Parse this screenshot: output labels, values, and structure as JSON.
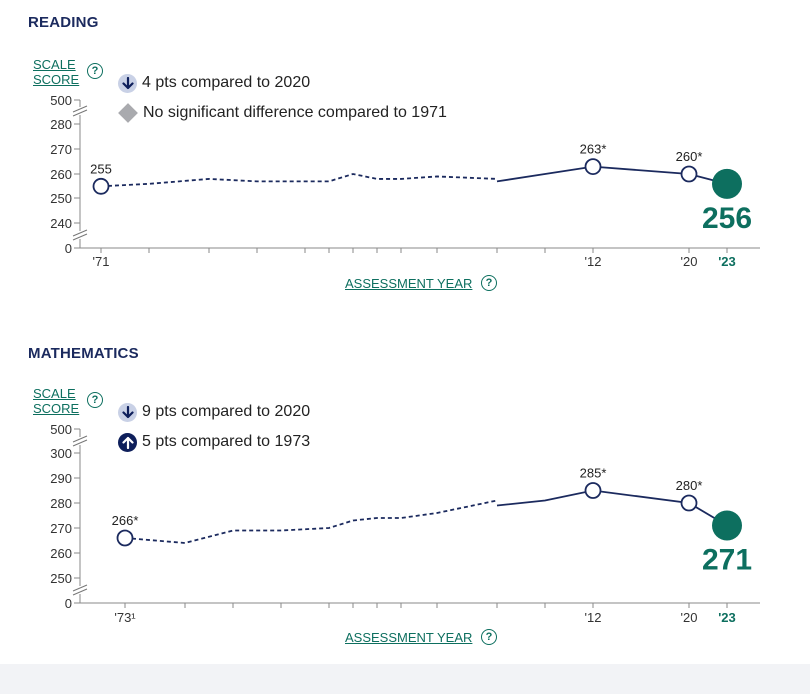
{
  "colors": {
    "navy": "#1b2a5e",
    "teal": "#0d6f5f",
    "gray": "#a9aaae",
    "light_arrow": "#c9d1e6",
    "dark_arrow": "#0e1f5b"
  },
  "scale_score_label": [
    "SCALE",
    "SCORE"
  ],
  "help_symbol": "?",
  "x_axis_label": "ASSESSMENT YEAR",
  "reading": {
    "title": "READING",
    "legend": [
      {
        "icon": "down-arrow-icon",
        "text": "4 pts compared to 2020"
      },
      {
        "icon": "gray-diamond-icon",
        "text": "No significant difference compared to 1971"
      }
    ]
  },
  "math": {
    "title": "MATHEMATICS",
    "legend": [
      {
        "icon": "down-arrow-icon",
        "text": "9 pts compared to 2020"
      },
      {
        "icon": "up-arrow-icon",
        "text": "5 pts compared to 1973"
      }
    ]
  },
  "chart_data": [
    {
      "type": "line",
      "title": "READING",
      "ylabel": "SCALE SCORE",
      "xlabel": "ASSESSMENT YEAR",
      "y_ticks": [
        "0",
        "240",
        "250",
        "260",
        "270",
        "280",
        "500"
      ],
      "x_tick_labels": [
        {
          "year": 1971,
          "label": "'71"
        },
        {
          "year": 2012,
          "label": "'12"
        },
        {
          "year": 2020,
          "label": "'20"
        },
        {
          "year": 2023,
          "label": "'23"
        }
      ],
      "x_years": [
        1971,
        1975,
        1980,
        1984,
        1988,
        1990,
        1992,
        1994,
        1996,
        1999,
        2004,
        2008,
        2012,
        2020,
        2023
      ],
      "series": [
        {
          "name": "original format (dashed)",
          "x": [
            1971,
            1975,
            1980,
            1984,
            1988,
            1990,
            1992,
            1994,
            1996,
            1999,
            2004
          ],
          "y": [
            255,
            256,
            258,
            257,
            257,
            257,
            260,
            258,
            258,
            259,
            258
          ]
        },
        {
          "name": "revised format",
          "x": [
            2004,
            2008,
            2012,
            2020,
            2023
          ],
          "y": [
            257,
            260,
            263,
            260,
            256
          ]
        }
      ],
      "labeled_points": [
        {
          "x": 1971,
          "y": 255,
          "label": "255"
        },
        {
          "x": 2012,
          "y": 263,
          "label": "263*"
        },
        {
          "x": 2020,
          "y": 260,
          "label": "260*"
        }
      ],
      "highlight": {
        "x": 2023,
        "y": 256,
        "label": "256"
      }
    },
    {
      "type": "line",
      "title": "MATHEMATICS",
      "ylabel": "SCALE SCORE",
      "xlabel": "ASSESSMENT YEAR",
      "y_ticks": [
        "0",
        "250",
        "260",
        "270",
        "280",
        "290",
        "300",
        "500"
      ],
      "x_tick_labels": [
        {
          "year": 1973,
          "label": "'73¹"
        },
        {
          "year": 2012,
          "label": "'12"
        },
        {
          "year": 2020,
          "label": "'20"
        },
        {
          "year": 2023,
          "label": "'23"
        }
      ],
      "x_years": [
        1973,
        1978,
        1982,
        1986,
        1990,
        1992,
        1994,
        1996,
        1999,
        2004,
        2008,
        2012,
        2020,
        2023
      ],
      "series": [
        {
          "name": "original format (dashed)",
          "x": [
            1973,
            1978,
            1982,
            1986,
            1990,
            1992,
            1994,
            1996,
            1999,
            2004
          ],
          "y": [
            266,
            264,
            269,
            269,
            270,
            273,
            274,
            274,
            276,
            281
          ]
        },
        {
          "name": "revised format",
          "x": [
            2004,
            2008,
            2012,
            2020,
            2023
          ],
          "y": [
            279,
            281,
            285,
            280,
            271
          ]
        }
      ],
      "labeled_points": [
        {
          "x": 1973,
          "y": 266,
          "label": "266*"
        },
        {
          "x": 2012,
          "y": 285,
          "label": "285*"
        },
        {
          "x": 2020,
          "y": 280,
          "label": "280*"
        }
      ],
      "highlight": {
        "x": 2023,
        "y": 271,
        "label": "271"
      }
    }
  ]
}
